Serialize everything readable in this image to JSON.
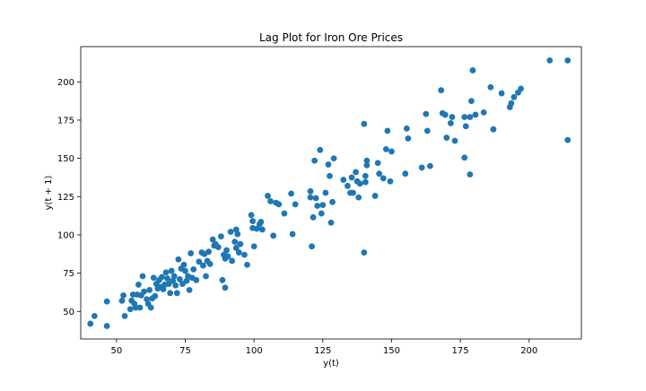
{
  "chart_data": {
    "type": "scatter",
    "title": "Lag Plot for Iron Ore Prices",
    "xlabel": "y(t)",
    "ylabel": "y(t + 1)",
    "xlim": [
      37,
      219
    ],
    "ylim": [
      32,
      223
    ],
    "xticks": [
      50,
      75,
      100,
      125,
      150,
      175,
      200
    ],
    "yticks": [
      50,
      75,
      100,
      125,
      150,
      175,
      200
    ],
    "marker_color": "#1f77b4",
    "grid": false,
    "points": [
      [
        40.5,
        42
      ],
      [
        42,
        47
      ],
      [
        46.5,
        40.5
      ],
      [
        46.5,
        56.5
      ],
      [
        52,
        57
      ],
      [
        52.5,
        60.5
      ],
      [
        53,
        47
      ],
      [
        55,
        51.5
      ],
      [
        55.5,
        57
      ],
      [
        56,
        61
      ],
      [
        56.5,
        55
      ],
      [
        57,
        52.5
      ],
      [
        57.5,
        61
      ],
      [
        58,
        67.5
      ],
      [
        58.5,
        52.5
      ],
      [
        59,
        60.5
      ],
      [
        59.5,
        73
      ],
      [
        60,
        63
      ],
      [
        61,
        58
      ],
      [
        61.5,
        55
      ],
      [
        62,
        64
      ],
      [
        62.5,
        52.5
      ],
      [
        63,
        58.5
      ],
      [
        63.5,
        72
      ],
      [
        64,
        60
      ],
      [
        64.5,
        68
      ],
      [
        65,
        65
      ],
      [
        65.5,
        70.5
      ],
      [
        66,
        66
      ],
      [
        66.5,
        72.5
      ],
      [
        67,
        64.5
      ],
      [
        67.5,
        67.5
      ],
      [
        68,
        75.5
      ],
      [
        68.5,
        71.5
      ],
      [
        69,
        68
      ],
      [
        69.5,
        62
      ],
      [
        70,
        76.5
      ],
      [
        70.5,
        70
      ],
      [
        71,
        73
      ],
      [
        71.5,
        67
      ],
      [
        72,
        62
      ],
      [
        72.5,
        84
      ],
      [
        73,
        71
      ],
      [
        73.5,
        78
      ],
      [
        74,
        68
      ],
      [
        74.5,
        80.5
      ],
      [
        75,
        76.5
      ],
      [
        75.5,
        70
      ],
      [
        76,
        73
      ],
      [
        76.5,
        64
      ],
      [
        77,
        88
      ],
      [
        77.5,
        72
      ],
      [
        78,
        77.5
      ],
      [
        79,
        70.5
      ],
      [
        80,
        82.5
      ],
      [
        81,
        88.5
      ],
      [
        81.5,
        80
      ],
      [
        82,
        87.5
      ],
      [
        82.5,
        73
      ],
      [
        83,
        83
      ],
      [
        83.5,
        89
      ],
      [
        84,
        81
      ],
      [
        85,
        97
      ],
      [
        85.5,
        93
      ],
      [
        86,
        94
      ],
      [
        87,
        92
      ],
      [
        88,
        99
      ],
      [
        88.5,
        70.5
      ],
      [
        89,
        87
      ],
      [
        89.5,
        84.5
      ],
      [
        89.5,
        65.5
      ],
      [
        90,
        90
      ],
      [
        90.5,
        86
      ],
      [
        91.5,
        102
      ],
      [
        92,
        83
      ],
      [
        93,
        95.5
      ],
      [
        93.5,
        91.5
      ],
      [
        93.5,
        103.5
      ],
      [
        94,
        100.5
      ],
      [
        94.5,
        88.5
      ],
      [
        95,
        94
      ],
      [
        96.5,
        87
      ],
      [
        97.5,
        80.5
      ],
      [
        99,
        113
      ],
      [
        99.5,
        104.5
      ],
      [
        99.5,
        109
      ],
      [
        100,
        92.5
      ],
      [
        101,
        104
      ],
      [
        102,
        107
      ],
      [
        102.5,
        108.5
      ],
      [
        103,
        103.5
      ],
      [
        105,
        125.5
      ],
      [
        106,
        122
      ],
      [
        107,
        99.5
      ],
      [
        108,
        121
      ],
      [
        109,
        120
      ],
      [
        111,
        114
      ],
      [
        113.5,
        127
      ],
      [
        114,
        100.5
      ],
      [
        115,
        120
      ],
      [
        120.5,
        128.5
      ],
      [
        120.5,
        124.5
      ],
      [
        121,
        92.5
      ],
      [
        121.5,
        111.5
      ],
      [
        122,
        148.5
      ],
      [
        122.5,
        124
      ],
      [
        123,
        119
      ],
      [
        124,
        155.5
      ],
      [
        124.5,
        114
      ],
      [
        125,
        119.5
      ],
      [
        126,
        127.5
      ],
      [
        127,
        146
      ],
      [
        127.5,
        138.5
      ],
      [
        128,
        108
      ],
      [
        128.5,
        121.5
      ],
      [
        129,
        150
      ],
      [
        132.5,
        136
      ],
      [
        134,
        132
      ],
      [
        135,
        127.5
      ],
      [
        135.5,
        137.5
      ],
      [
        136,
        127.5
      ],
      [
        137,
        141
      ],
      [
        137.5,
        135
      ],
      [
        138,
        124.5
      ],
      [
        138.5,
        133.5
      ],
      [
        140,
        172.5
      ],
      [
        140,
        88.5
      ],
      [
        140.5,
        134.5
      ],
      [
        140.5,
        138.5
      ],
      [
        141,
        145.5
      ],
      [
        141,
        148.5
      ],
      [
        144,
        125.5
      ],
      [
        145,
        147
      ],
      [
        145.5,
        140
      ],
      [
        147,
        137
      ],
      [
        148,
        156
      ],
      [
        148.5,
        168
      ],
      [
        149.5,
        135
      ],
      [
        150,
        154.5
      ],
      [
        155,
        140
      ],
      [
        155.5,
        169.5
      ],
      [
        156,
        163
      ],
      [
        161,
        144
      ],
      [
        162.5,
        179
      ],
      [
        163,
        168
      ],
      [
        164,
        145
      ],
      [
        168,
        194.5
      ],
      [
        168.5,
        179.5
      ],
      [
        169.5,
        178.5
      ],
      [
        170,
        163.5
      ],
      [
        171.5,
        173
      ],
      [
        172,
        177
      ],
      [
        173,
        161.5
      ],
      [
        176.5,
        150.5
      ],
      [
        176.5,
        177
      ],
      [
        177,
        171
      ],
      [
        178.5,
        139.5
      ],
      [
        178.5,
        177
      ],
      [
        179,
        187.5
      ],
      [
        179.5,
        207.5
      ],
      [
        180.5,
        178.5
      ],
      [
        183.5,
        180
      ],
      [
        186,
        196.5
      ],
      [
        187,
        169
      ],
      [
        190,
        192.5
      ],
      [
        193,
        183.5
      ],
      [
        193.5,
        186
      ],
      [
        194.5,
        190
      ],
      [
        196,
        193
      ],
      [
        197,
        195.5
      ],
      [
        207.5,
        214
      ],
      [
        214,
        214
      ],
      [
        214,
        162
      ]
    ]
  }
}
